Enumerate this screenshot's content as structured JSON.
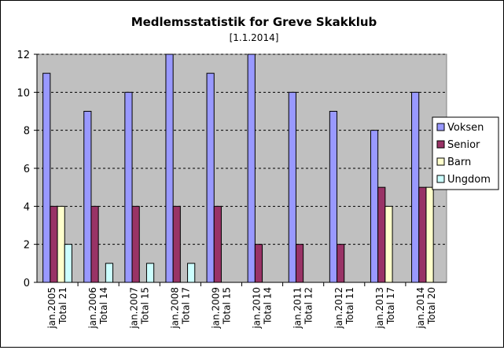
{
  "chart_data": {
    "type": "bar",
    "title": "Medlemsstatistik for Greve Skakklub",
    "subtitle": "[1.1.2014]",
    "categories": [
      [
        "jan.2005",
        "Total 21"
      ],
      [
        "jan.2006",
        "Total 14"
      ],
      [
        "jan.2007",
        "Total 15"
      ],
      [
        "jan.2008",
        "Total 17"
      ],
      [
        "jan.2009",
        "Total 15"
      ],
      [
        "jan.2010",
        "Total 14"
      ],
      [
        "jan.2011",
        "Total 12"
      ],
      [
        "jan.2012",
        "Total 11"
      ],
      [
        "jan.2013",
        "Total 17"
      ],
      [
        "jan.2014",
        "Total 20"
      ]
    ],
    "series": [
      {
        "name": "Voksen",
        "color": "#9999ff",
        "values": [
          11,
          9,
          10,
          12,
          11,
          12,
          10,
          9,
          8,
          10
        ]
      },
      {
        "name": "Senior",
        "color": "#993366",
        "values": [
          4,
          4,
          4,
          4,
          4,
          2,
          2,
          2,
          5,
          5
        ]
      },
      {
        "name": "Barn",
        "color": "#ffffcc",
        "values": [
          4,
          0,
          0,
          0,
          0,
          0,
          0,
          0,
          4,
          5
        ]
      },
      {
        "name": "Ungdom",
        "color": "#ccffff",
        "values": [
          2,
          1,
          1,
          1,
          0,
          0,
          0,
          0,
          0,
          0
        ]
      }
    ],
    "ylim": [
      0,
      12
    ],
    "yticks": [
      0,
      2,
      4,
      6,
      8,
      10,
      12
    ],
    "grid": true,
    "legend": "right",
    "plot_background": "#c0c0c0"
  }
}
